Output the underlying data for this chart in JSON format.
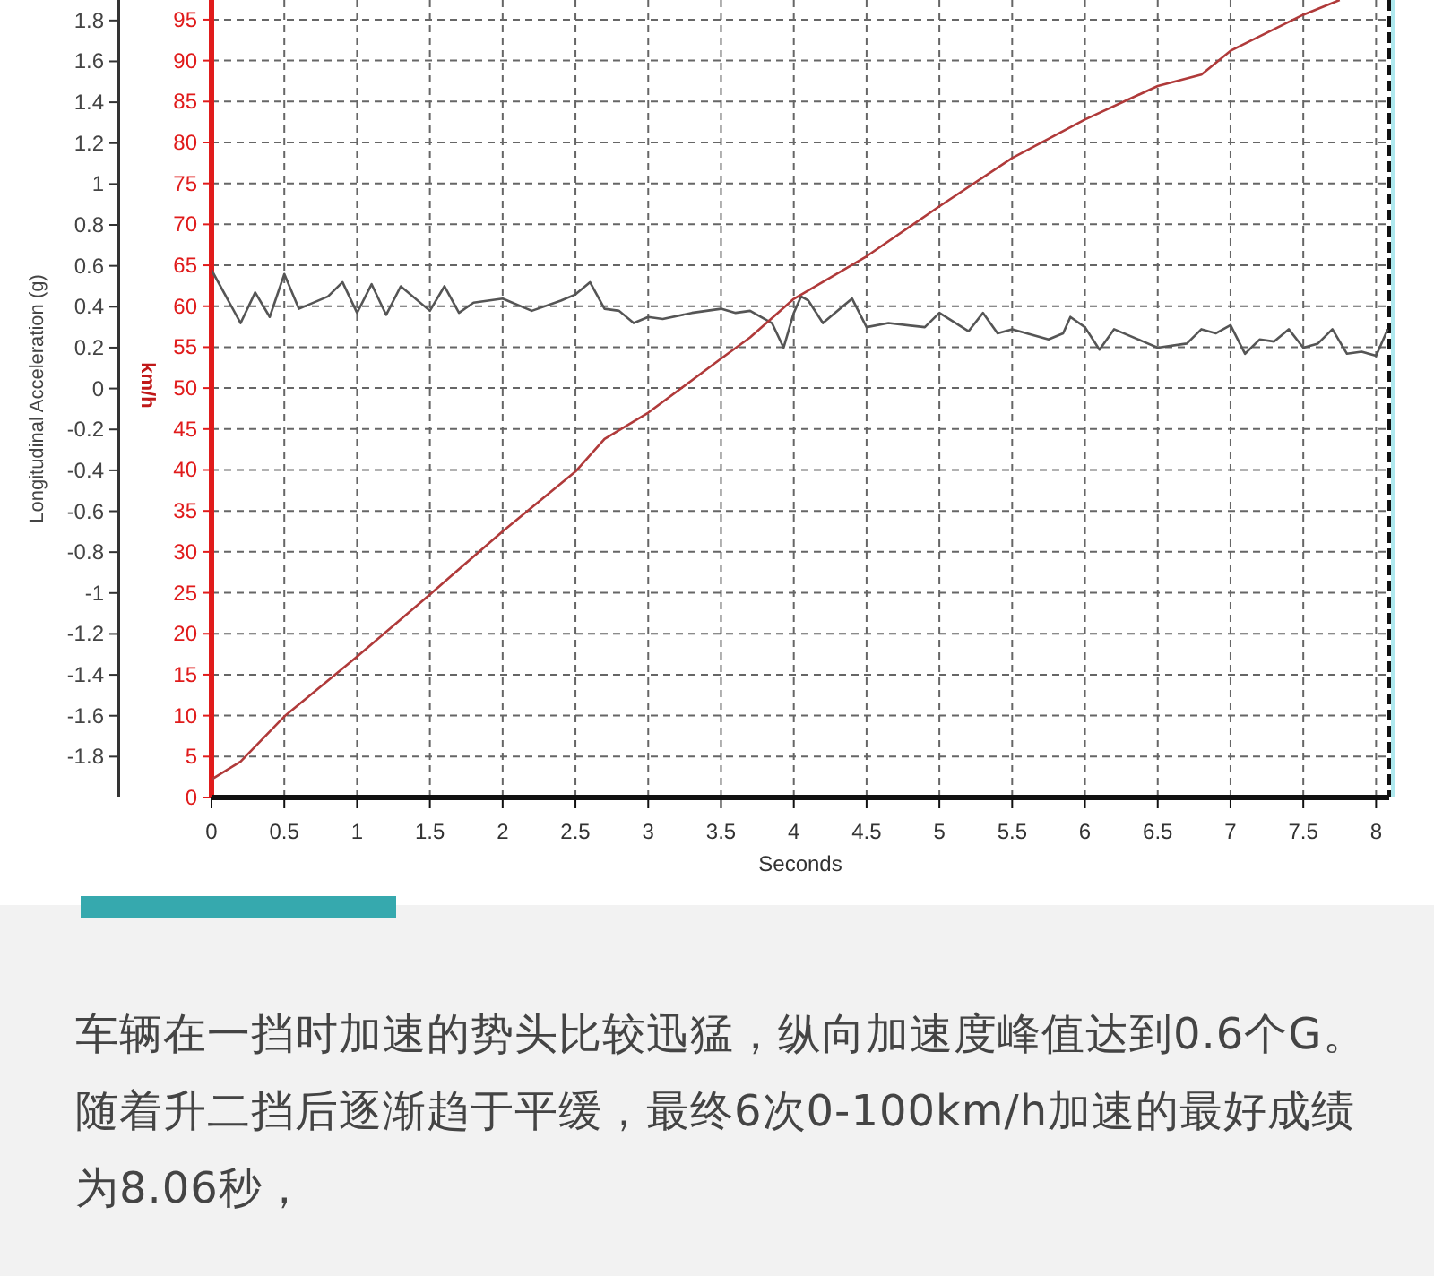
{
  "chart_data": {
    "type": "line",
    "xlabel": "Seconds",
    "ylabel": "Longitudinal Acceleration (g)",
    "y2label": "km/h",
    "xlim": [
      0,
      8.09
    ],
    "xticks": [
      0,
      0.5,
      1,
      1.5,
      2,
      2.5,
      3,
      3.5,
      4,
      4.5,
      5,
      5.5,
      6,
      6.5,
      7,
      7.5,
      8
    ],
    "ylim": [
      -2.0,
      1.9
    ],
    "yticks": [
      -1.8,
      -1.6,
      -1.4,
      -1.2,
      -1,
      -0.8,
      -0.6,
      -0.4,
      -0.2,
      0,
      0.2,
      0.4,
      0.6,
      0.8,
      1,
      1.2,
      1.4,
      1.6,
      1.8
    ],
    "y2lim": [
      0,
      97.4
    ],
    "y2ticks": [
      0,
      5,
      10,
      15,
      20,
      25,
      30,
      35,
      40,
      45,
      50,
      55,
      60,
      65,
      70,
      75,
      80,
      85,
      90,
      95
    ],
    "grid": true,
    "marker": "none",
    "line_style": "solid",
    "series": [
      {
        "axis": "y",
        "color": "#555555",
        "x": [
          0,
          0.2,
          0.3,
          0.4,
          0.5,
          0.6,
          0.8,
          0.9,
          1.0,
          1.1,
          1.2,
          1.3,
          1.5,
          1.6,
          1.7,
          1.8,
          2.0,
          2.2,
          2.4,
          2.5,
          2.6,
          2.7,
          2.8,
          2.9,
          3.0,
          3.1,
          3.3,
          3.5,
          3.6,
          3.7,
          3.85,
          3.93,
          4.0,
          4.05,
          4.1,
          4.2,
          4.4,
          4.5,
          4.65,
          4.9,
          5.0,
          5.2,
          5.3,
          5.4,
          5.5,
          5.75,
          5.85,
          5.9,
          6.0,
          6.1,
          6.2,
          6.4,
          6.5,
          6.7,
          6.8,
          6.9,
          7.0,
          7.1,
          7.2,
          7.3,
          7.4,
          7.5,
          7.6,
          7.7,
          7.8,
          7.9,
          8.0,
          8.08
        ],
        "values": [
          0.58,
          0.32,
          0.47,
          0.35,
          0.56,
          0.39,
          0.45,
          0.52,
          0.37,
          0.51,
          0.36,
          0.5,
          0.38,
          0.5,
          0.37,
          0.42,
          0.44,
          0.38,
          0.43,
          0.46,
          0.52,
          0.39,
          0.38,
          0.32,
          0.35,
          0.34,
          0.37,
          0.39,
          0.37,
          0.38,
          0.32,
          0.2,
          0.37,
          0.45,
          0.43,
          0.32,
          0.44,
          0.3,
          0.32,
          0.3,
          0.37,
          0.28,
          0.37,
          0.27,
          0.29,
          0.24,
          0.27,
          0.35,
          0.3,
          0.19,
          0.29,
          0.23,
          0.2,
          0.22,
          0.29,
          0.27,
          0.31,
          0.17,
          0.24,
          0.23,
          0.29,
          0.2,
          0.22,
          0.29,
          0.17,
          0.18,
          0.16,
          0.29
        ]
      },
      {
        "axis": "y2",
        "color": "#b03a3a",
        "x": [
          0,
          0.2,
          0.5,
          1.0,
          1.5,
          2.0,
          2.5,
          2.7,
          3.0,
          3.5,
          3.7,
          4.0,
          4.5,
          5.0,
          5.5,
          6.0,
          6.5,
          6.8,
          7.0,
          7.5,
          7.75
        ],
        "values": [
          2.2,
          4.4,
          9.9,
          17.2,
          24.8,
          32.5,
          39.8,
          43.8,
          47,
          53.6,
          56.2,
          60.9,
          66.1,
          72.2,
          78.1,
          82.8,
          86.9,
          88.3,
          91.2,
          95.6,
          97.4
        ]
      }
    ],
    "annotations": [
      "车辆在一挡时加速的势头比较迅猛，纵向加速度峰值达到0.6个G。随着升二挡后逐渐趋于平缓，最终6次0-100km/h加速的最好成绩为8.06秒，"
    ]
  }
}
